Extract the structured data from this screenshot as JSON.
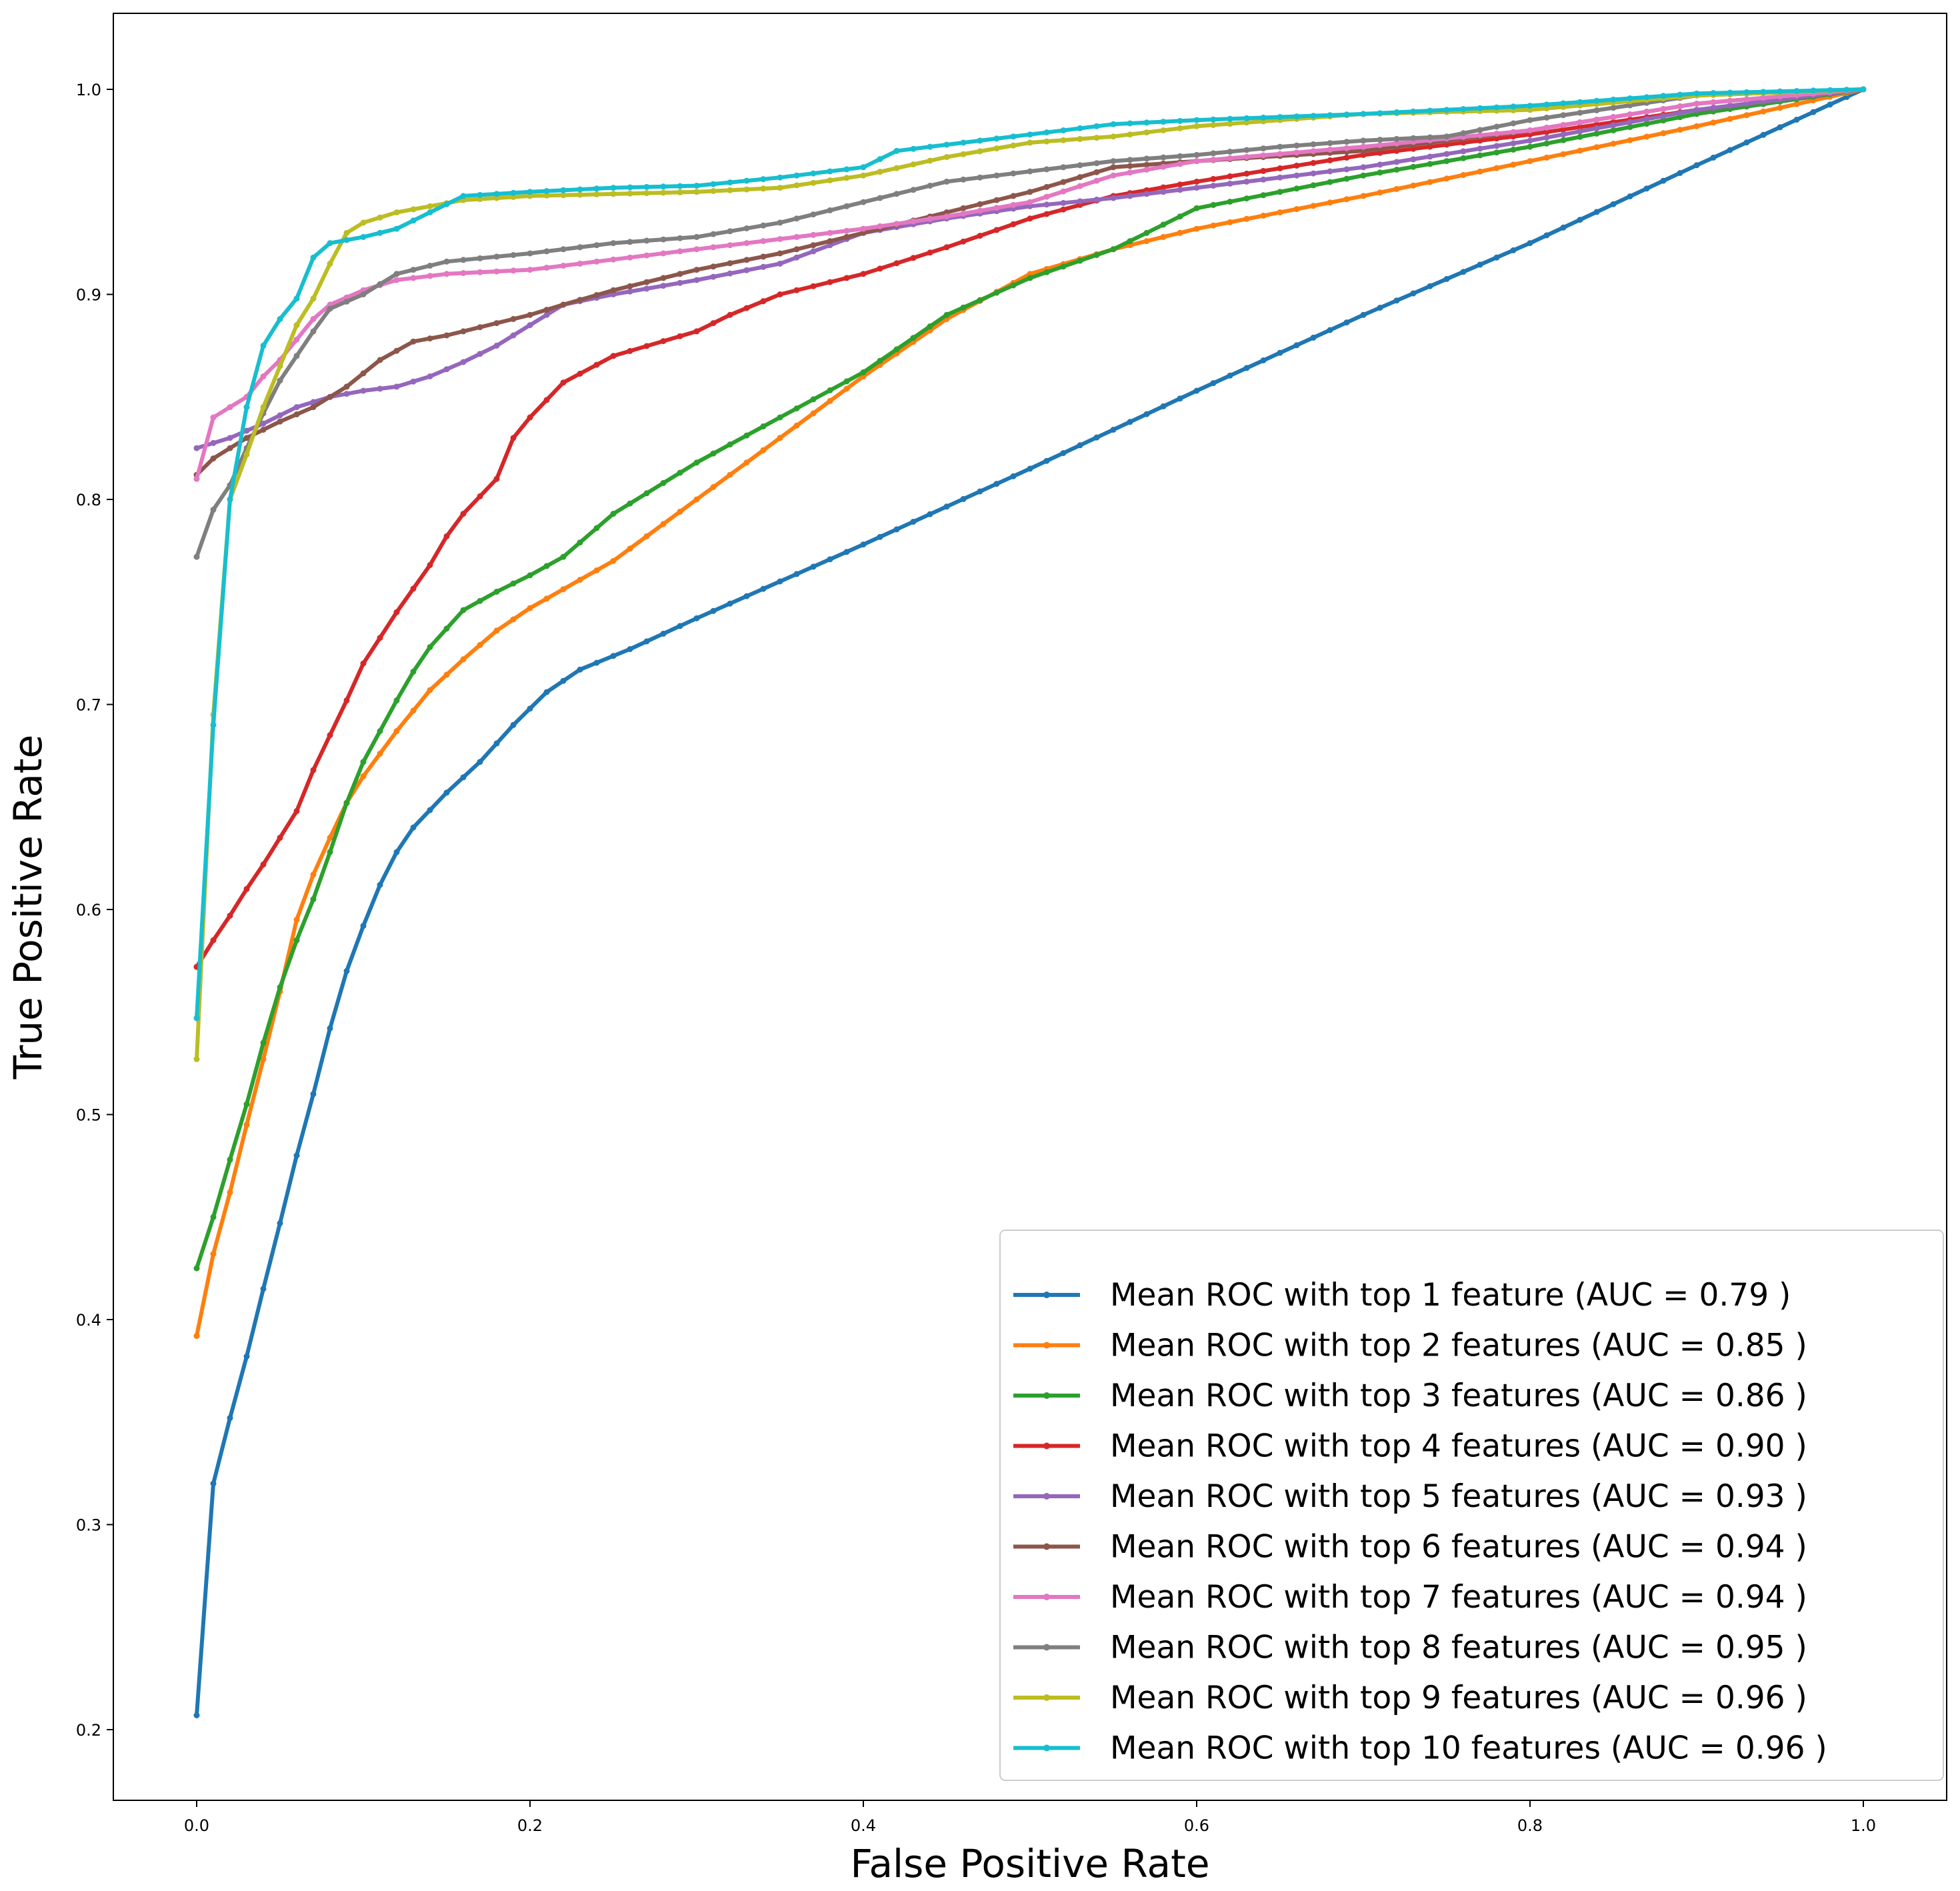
{
  "chart_data": {
    "type": "line",
    "title": "",
    "xlabel": "False Positive Rate",
    "ylabel": "True Positive Rate",
    "xlim": [
      -0.05,
      1.05
    ],
    "ylim": [
      0.18,
      1.04
    ],
    "xticks": [
      0.0,
      0.2,
      0.4,
      0.6,
      0.8,
      1.0
    ],
    "yticks": [
      0.2,
      0.3,
      0.4,
      0.5,
      0.6,
      0.7,
      0.8,
      0.9,
      1.0
    ],
    "xtick_labels": [
      "0.0",
      "0.2",
      "0.4",
      "0.6",
      "0.8",
      "1.0"
    ],
    "ytick_labels": [
      "0.2",
      "0.3",
      "0.4",
      "0.5",
      "0.6",
      "0.7",
      "0.8",
      "0.9",
      "1.0"
    ],
    "legend_position": "lower-right",
    "series": [
      {
        "name": "Mean ROC with top 1 feature (AUC = 0.79 )",
        "color": "#1f77b4",
        "points": [
          [
            0,
            0.207
          ],
          [
            0.01,
            0.32
          ],
          [
            0.02,
            0.352
          ],
          [
            0.03,
            0.382
          ],
          [
            0.04,
            0.415
          ],
          [
            0.05,
            0.447
          ],
          [
            0.06,
            0.48
          ],
          [
            0.07,
            0.51
          ],
          [
            0.08,
            0.542
          ],
          [
            0.09,
            0.57
          ],
          [
            0.1,
            0.592
          ],
          [
            0.11,
            0.612
          ],
          [
            0.12,
            0.628
          ],
          [
            0.13,
            0.64
          ],
          [
            0.15,
            0.657
          ],
          [
            0.17,
            0.672
          ],
          [
            0.19,
            0.69
          ],
          [
            0.21,
            0.706
          ],
          [
            0.23,
            0.717
          ],
          [
            0.26,
            0.727
          ],
          [
            0.3,
            0.742
          ],
          [
            0.35,
            0.76
          ],
          [
            0.4,
            0.778
          ],
          [
            0.5,
            0.815
          ],
          [
            0.6,
            0.853
          ],
          [
            0.7,
            0.89
          ],
          [
            0.8,
            0.925
          ],
          [
            0.9,
            0.963
          ],
          [
            1.0,
            1.0
          ]
        ]
      },
      {
        "name": "Mean ROC with top 2 features (AUC = 0.85 )",
        "color": "#ff7f0e",
        "points": [
          [
            0,
            0.392
          ],
          [
            0.01,
            0.432
          ],
          [
            0.02,
            0.462
          ],
          [
            0.03,
            0.495
          ],
          [
            0.04,
            0.527
          ],
          [
            0.05,
            0.56
          ],
          [
            0.06,
            0.595
          ],
          [
            0.07,
            0.617
          ],
          [
            0.08,
            0.635
          ],
          [
            0.09,
            0.652
          ],
          [
            0.1,
            0.665
          ],
          [
            0.12,
            0.687
          ],
          [
            0.14,
            0.707
          ],
          [
            0.16,
            0.722
          ],
          [
            0.18,
            0.736
          ],
          [
            0.2,
            0.747
          ],
          [
            0.25,
            0.77
          ],
          [
            0.3,
            0.8
          ],
          [
            0.35,
            0.83
          ],
          [
            0.4,
            0.86
          ],
          [
            0.45,
            0.888
          ],
          [
            0.5,
            0.91
          ],
          [
            0.55,
            0.922
          ],
          [
            0.6,
            0.932
          ],
          [
            0.7,
            0.948
          ],
          [
            0.8,
            0.965
          ],
          [
            0.9,
            0.982
          ],
          [
            1.0,
            1.0
          ]
        ]
      },
      {
        "name": "Mean ROC with top 3 features (AUC = 0.86 )",
        "color": "#2ca02c",
        "points": [
          [
            0,
            0.425
          ],
          [
            0.01,
            0.45
          ],
          [
            0.02,
            0.478
          ],
          [
            0.03,
            0.505
          ],
          [
            0.04,
            0.535
          ],
          [
            0.05,
            0.562
          ],
          [
            0.06,
            0.585
          ],
          [
            0.07,
            0.605
          ],
          [
            0.08,
            0.628
          ],
          [
            0.09,
            0.652
          ],
          [
            0.1,
            0.672
          ],
          [
            0.12,
            0.702
          ],
          [
            0.13,
            0.716
          ],
          [
            0.14,
            0.728
          ],
          [
            0.16,
            0.746
          ],
          [
            0.18,
            0.755
          ],
          [
            0.2,
            0.763
          ],
          [
            0.22,
            0.772
          ],
          [
            0.25,
            0.793
          ],
          [
            0.3,
            0.818
          ],
          [
            0.35,
            0.84
          ],
          [
            0.4,
            0.862
          ],
          [
            0.45,
            0.89
          ],
          [
            0.5,
            0.908
          ],
          [
            0.55,
            0.922
          ],
          [
            0.6,
            0.942
          ],
          [
            0.7,
            0.958
          ],
          [
            0.8,
            0.972
          ],
          [
            0.9,
            0.988
          ],
          [
            1.0,
            1.0
          ]
        ]
      },
      {
        "name": "Mean ROC with top 4 features (AUC = 0.90 )",
        "color": "#d62728",
        "points": [
          [
            0,
            0.572
          ],
          [
            0.01,
            0.585
          ],
          [
            0.02,
            0.597
          ],
          [
            0.03,
            0.61
          ],
          [
            0.04,
            0.622
          ],
          [
            0.05,
            0.635
          ],
          [
            0.06,
            0.648
          ],
          [
            0.07,
            0.668
          ],
          [
            0.08,
            0.685
          ],
          [
            0.09,
            0.702
          ],
          [
            0.1,
            0.72
          ],
          [
            0.12,
            0.745
          ],
          [
            0.14,
            0.768
          ],
          [
            0.15,
            0.782
          ],
          [
            0.16,
            0.793
          ],
          [
            0.18,
            0.81
          ],
          [
            0.19,
            0.83
          ],
          [
            0.2,
            0.84
          ],
          [
            0.22,
            0.857
          ],
          [
            0.25,
            0.87
          ],
          [
            0.3,
            0.882
          ],
          [
            0.32,
            0.89
          ],
          [
            0.35,
            0.9
          ],
          [
            0.4,
            0.91
          ],
          [
            0.45,
            0.923
          ],
          [
            0.5,
            0.937
          ],
          [
            0.55,
            0.948
          ],
          [
            0.6,
            0.955
          ],
          [
            0.7,
            0.968
          ],
          [
            0.8,
            0.978
          ],
          [
            0.9,
            0.99
          ],
          [
            1.0,
            1.0
          ]
        ]
      },
      {
        "name": "Mean ROC with top 5 features (AUC = 0.93 )",
        "color": "#9467bd",
        "points": [
          [
            0,
            0.825
          ],
          [
            0.02,
            0.83
          ],
          [
            0.04,
            0.837
          ],
          [
            0.06,
            0.845
          ],
          [
            0.08,
            0.85
          ],
          [
            0.1,
            0.853
          ],
          [
            0.12,
            0.855
          ],
          [
            0.14,
            0.86
          ],
          [
            0.16,
            0.867
          ],
          [
            0.18,
            0.875
          ],
          [
            0.2,
            0.885
          ],
          [
            0.22,
            0.895
          ],
          [
            0.25,
            0.9
          ],
          [
            0.3,
            0.907
          ],
          [
            0.35,
            0.915
          ],
          [
            0.4,
            0.93
          ],
          [
            0.45,
            0.937
          ],
          [
            0.5,
            0.943
          ],
          [
            0.55,
            0.947
          ],
          [
            0.6,
            0.952
          ],
          [
            0.7,
            0.962
          ],
          [
            0.8,
            0.975
          ],
          [
            0.9,
            0.99
          ],
          [
            1.0,
            1.0
          ]
        ]
      },
      {
        "name": "Mean ROC with top 6 features (AUC = 0.94 )",
        "color": "#8c564b",
        "points": [
          [
            0,
            0.812
          ],
          [
            0.01,
            0.82
          ],
          [
            0.02,
            0.825
          ],
          [
            0.03,
            0.83
          ],
          [
            0.05,
            0.838
          ],
          [
            0.07,
            0.845
          ],
          [
            0.09,
            0.855
          ],
          [
            0.11,
            0.868
          ],
          [
            0.13,
            0.877
          ],
          [
            0.15,
            0.88
          ],
          [
            0.18,
            0.886
          ],
          [
            0.2,
            0.89
          ],
          [
            0.22,
            0.895
          ],
          [
            0.25,
            0.902
          ],
          [
            0.3,
            0.912
          ],
          [
            0.35,
            0.92
          ],
          [
            0.4,
            0.93
          ],
          [
            0.45,
            0.94
          ],
          [
            0.5,
            0.95
          ],
          [
            0.55,
            0.962
          ],
          [
            0.6,
            0.965
          ],
          [
            0.7,
            0.97
          ],
          [
            0.8,
            0.98
          ],
          [
            0.9,
            0.993
          ],
          [
            1.0,
            1.0
          ]
        ]
      },
      {
        "name": "Mean ROC with top 7 features (AUC = 0.94 )",
        "color": "#e377c2",
        "points": [
          [
            0,
            0.81
          ],
          [
            0.01,
            0.84
          ],
          [
            0.02,
            0.845
          ],
          [
            0.03,
            0.85
          ],
          [
            0.04,
            0.86
          ],
          [
            0.05,
            0.868
          ],
          [
            0.06,
            0.878
          ],
          [
            0.07,
            0.888
          ],
          [
            0.08,
            0.895
          ],
          [
            0.1,
            0.902
          ],
          [
            0.12,
            0.907
          ],
          [
            0.15,
            0.91
          ],
          [
            0.2,
            0.912
          ],
          [
            0.25,
            0.917
          ],
          [
            0.3,
            0.922
          ],
          [
            0.35,
            0.927
          ],
          [
            0.4,
            0.932
          ],
          [
            0.45,
            0.938
          ],
          [
            0.5,
            0.945
          ],
          [
            0.55,
            0.958
          ],
          [
            0.6,
            0.965
          ],
          [
            0.7,
            0.972
          ],
          [
            0.8,
            0.98
          ],
          [
            0.9,
            0.993
          ],
          [
            1.0,
            1.0
          ]
        ]
      },
      {
        "name": "Mean ROC with top 8 features (AUC = 0.95 )",
        "color": "#7f7f7f",
        "points": [
          [
            0,
            0.772
          ],
          [
            0.01,
            0.795
          ],
          [
            0.02,
            0.807
          ],
          [
            0.03,
            0.825
          ],
          [
            0.04,
            0.842
          ],
          [
            0.05,
            0.858
          ],
          [
            0.06,
            0.87
          ],
          [
            0.07,
            0.882
          ],
          [
            0.08,
            0.893
          ],
          [
            0.1,
            0.9
          ],
          [
            0.12,
            0.91
          ],
          [
            0.15,
            0.916
          ],
          [
            0.2,
            0.92
          ],
          [
            0.25,
            0.925
          ],
          [
            0.3,
            0.928
          ],
          [
            0.35,
            0.935
          ],
          [
            0.4,
            0.945
          ],
          [
            0.45,
            0.955
          ],
          [
            0.5,
            0.96
          ],
          [
            0.55,
            0.965
          ],
          [
            0.6,
            0.968
          ],
          [
            0.65,
            0.972
          ],
          [
            0.7,
            0.975
          ],
          [
            0.75,
            0.977
          ],
          [
            0.8,
            0.985
          ],
          [
            0.9,
            0.997
          ],
          [
            1.0,
            1.0
          ]
        ]
      },
      {
        "name": "Mean ROC with top 9 features (AUC = 0.96 )",
        "color": "#bcbd22",
        "points": [
          [
            0,
            0.527
          ],
          [
            0.01,
            0.695
          ],
          [
            0.02,
            0.8
          ],
          [
            0.03,
            0.822
          ],
          [
            0.04,
            0.845
          ],
          [
            0.05,
            0.865
          ],
          [
            0.06,
            0.885
          ],
          [
            0.07,
            0.898
          ],
          [
            0.08,
            0.915
          ],
          [
            0.09,
            0.93
          ],
          [
            0.1,
            0.935
          ],
          [
            0.12,
            0.94
          ],
          [
            0.14,
            0.943
          ],
          [
            0.16,
            0.946
          ],
          [
            0.2,
            0.948
          ],
          [
            0.3,
            0.95
          ],
          [
            0.35,
            0.952
          ],
          [
            0.4,
            0.958
          ],
          [
            0.45,
            0.967
          ],
          [
            0.5,
            0.974
          ],
          [
            0.55,
            0.977
          ],
          [
            0.6,
            0.982
          ],
          [
            0.7,
            0.988
          ],
          [
            0.8,
            0.99
          ],
          [
            0.9,
            0.997
          ],
          [
            1.0,
            1.0
          ]
        ]
      },
      {
        "name": "Mean ROC with top 10 features (AUC = 0.96 )",
        "color": "#17becf",
        "points": [
          [
            0,
            0.547
          ],
          [
            0.01,
            0.69
          ],
          [
            0.02,
            0.8
          ],
          [
            0.03,
            0.845
          ],
          [
            0.04,
            0.875
          ],
          [
            0.05,
            0.888
          ],
          [
            0.06,
            0.898
          ],
          [
            0.07,
            0.918
          ],
          [
            0.08,
            0.925
          ],
          [
            0.1,
            0.928
          ],
          [
            0.12,
            0.932
          ],
          [
            0.14,
            0.94
          ],
          [
            0.16,
            0.948
          ],
          [
            0.2,
            0.95
          ],
          [
            0.25,
            0.952
          ],
          [
            0.3,
            0.953
          ],
          [
            0.35,
            0.957
          ],
          [
            0.4,
            0.962
          ],
          [
            0.42,
            0.97
          ],
          [
            0.45,
            0.973
          ],
          [
            0.5,
            0.978
          ],
          [
            0.55,
            0.983
          ],
          [
            0.6,
            0.985
          ],
          [
            0.7,
            0.988
          ],
          [
            0.8,
            0.992
          ],
          [
            0.9,
            0.998
          ],
          [
            1.0,
            1.0
          ]
        ]
      }
    ]
  }
}
